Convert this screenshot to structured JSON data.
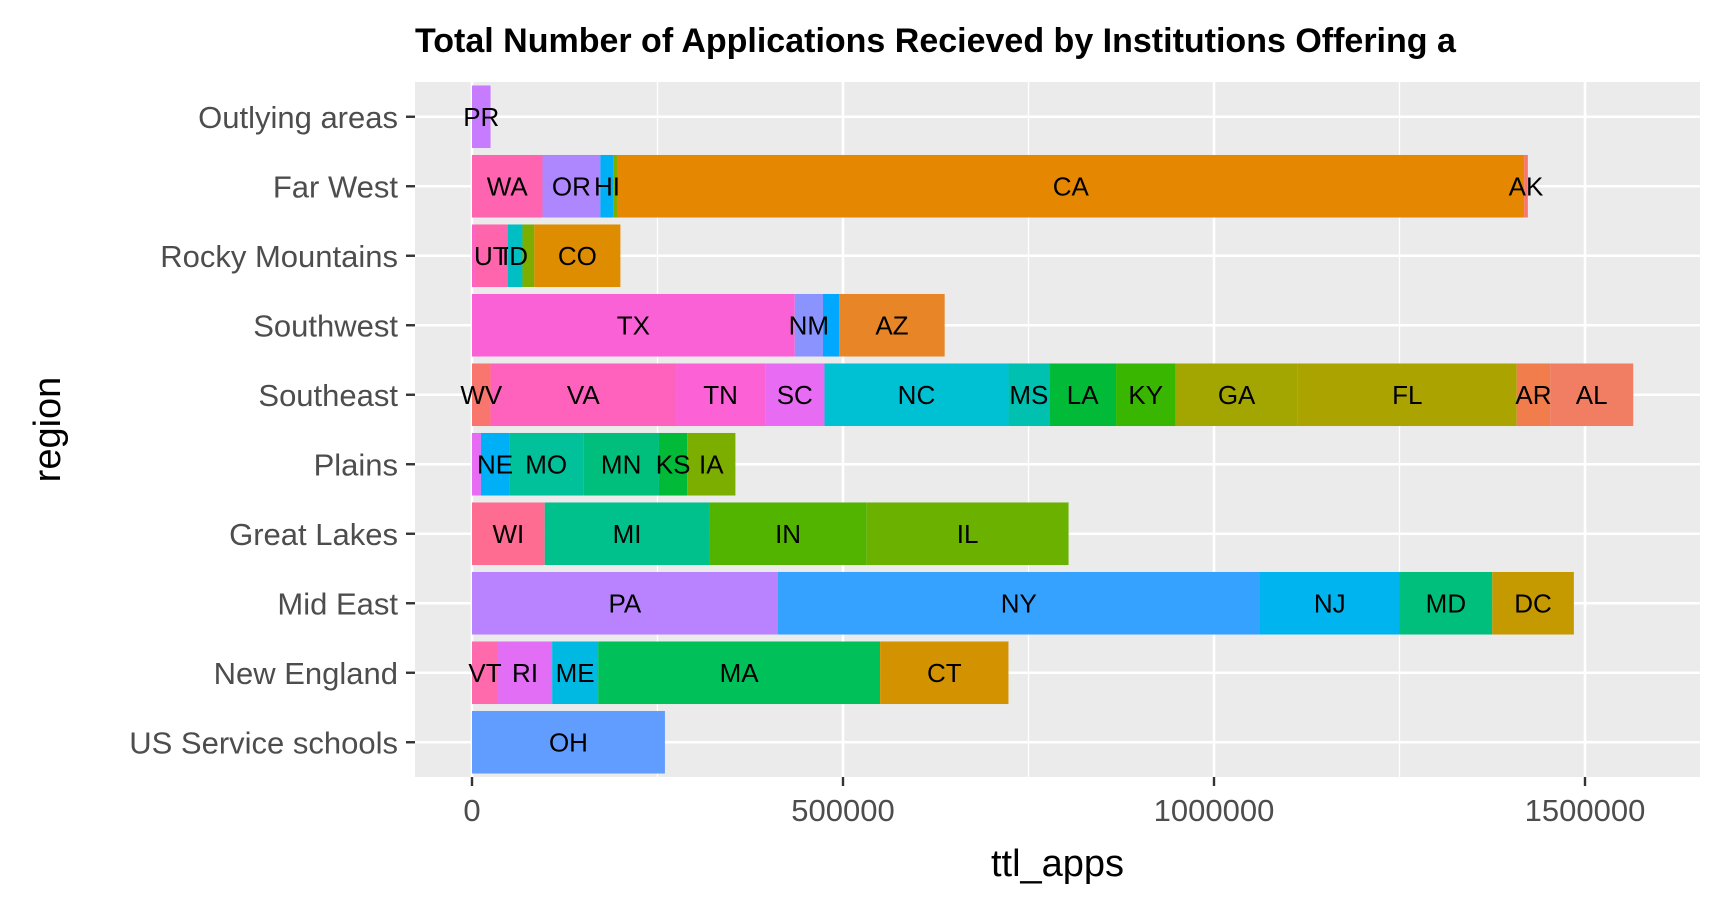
{
  "chart_data": {
    "type": "bar",
    "orientation": "horizontal",
    "stacked": true,
    "title": "Total Number of Applications Recieved by Institutions Offering a",
    "xlabel": "ttl_apps",
    "ylabel": "region",
    "xlim": [
      -75000,
      1615000
    ],
    "xticks": [
      0,
      500000,
      1000000,
      1500000
    ],
    "xtick_labels": [
      "0",
      "500000",
      "1000000",
      "1500000"
    ],
    "grid": true,
    "legend": "none",
    "categories": [
      "Outlying areas",
      "Far West",
      "Rocky Mountains",
      "Southwest",
      "Southeast",
      "Plains",
      "Great Lakes",
      "Mid East",
      "New England",
      "US Service schools"
    ],
    "bars": [
      {
        "region": "Outlying areas",
        "segments": [
          {
            "label": "PR",
            "value": 25000,
            "color": "#C77CFF"
          }
        ]
      },
      {
        "region": "Far West",
        "segments": [
          {
            "label": "WA",
            "value": 95000,
            "color": "#FF64B0"
          },
          {
            "label": "OR",
            "value": 78000,
            "color": "#AE87FF"
          },
          {
            "label": "HI",
            "value": 18000,
            "color": "#00B0F6"
          },
          {
            "label": "",
            "value": 5000,
            "color": "#7CAE00"
          },
          {
            "label": "CA",
            "value": 1222000,
            "color": "#E58700"
          },
          {
            "label": "AK",
            "value": 5000,
            "color": "#F8766D"
          }
        ]
      },
      {
        "region": "Rocky Mountains",
        "segments": [
          {
            "label": "",
            "value": 4000,
            "color": "#FF61C3"
          },
          {
            "label": "UT",
            "value": 44000,
            "color": "#FF65AC"
          },
          {
            "label": "ID",
            "value": 20000,
            "color": "#00BFC4"
          },
          {
            "label": "",
            "value": 16000,
            "color": "#7CAE00"
          },
          {
            "label": "CO",
            "value": 116000,
            "color": "#DE8C00"
          }
        ]
      },
      {
        "region": "Southwest",
        "segments": [
          {
            "label": "TX",
            "value": 435000,
            "color": "#FB61D7"
          },
          {
            "label": "NM",
            "value": 38000,
            "color": "#8B93FF"
          },
          {
            "label": "",
            "value": 22000,
            "color": "#00A9FF"
          },
          {
            "label": "AZ",
            "value": 142000,
            "color": "#E88526"
          }
        ]
      },
      {
        "region": "Southeast",
        "segments": [
          {
            "label": "WV",
            "value": 25000,
            "color": "#F8766D"
          },
          {
            "label": "VA",
            "value": 250000,
            "color": "#FF62BC"
          },
          {
            "label": "TN",
            "value": 120000,
            "color": "#FC61D5"
          },
          {
            "label": "SC",
            "value": 80000,
            "color": "#E76BF3"
          },
          {
            "label": "NC",
            "value": 248000,
            "color": "#00C1D4"
          },
          {
            "label": "MS",
            "value": 55000,
            "color": "#00C0AF"
          },
          {
            "label": "LA",
            "value": 90000,
            "color": "#00BA38"
          },
          {
            "label": "KY",
            "value": 80000,
            "color": "#39B600"
          },
          {
            "label": "GA",
            "value": 165000,
            "color": "#A3A500"
          },
          {
            "label": "FL",
            "value": 295000,
            "color": "#ABA300"
          },
          {
            "label": "AR",
            "value": 45000,
            "color": "#F07D4B"
          },
          {
            "label": "AL",
            "value": 112000,
            "color": "#F17E63"
          }
        ]
      },
      {
        "region": "Plains",
        "segments": [
          {
            "label": "",
            "value": 12000,
            "color": "#E76BF3"
          },
          {
            "label": "NE",
            "value": 38000,
            "color": "#00B0F6"
          },
          {
            "label": "MO",
            "value": 100000,
            "color": "#00C19A"
          },
          {
            "label": "MN",
            "value": 102000,
            "color": "#00BF7D"
          },
          {
            "label": "KS",
            "value": 38000,
            "color": "#00BA38"
          },
          {
            "label": "IA",
            "value": 65000,
            "color": "#7CAE00"
          }
        ]
      },
      {
        "region": "Great Lakes",
        "segments": [
          {
            "label": "WI",
            "value": 98000,
            "color": "#FF6C91"
          },
          {
            "label": "MI",
            "value": 222000,
            "color": "#00C08B"
          },
          {
            "label": "IN",
            "value": 212000,
            "color": "#53B400"
          },
          {
            "label": "IL",
            "value": 272000,
            "color": "#6BB100"
          }
        ]
      },
      {
        "region": "Mid East",
        "segments": [
          {
            "label": "PA",
            "value": 412000,
            "color": "#B983FF"
          },
          {
            "label": "NY",
            "value": 650000,
            "color": "#35A2FF"
          },
          {
            "label": "NJ",
            "value": 188000,
            "color": "#00B4EF"
          },
          {
            "label": "MD",
            "value": 125000,
            "color": "#00BF7D"
          },
          {
            "label": "DC",
            "value": 110000,
            "color": "#C49A00"
          }
        ]
      },
      {
        "region": "New England",
        "segments": [
          {
            "label": "VT",
            "value": 35000,
            "color": "#FF6AAD"
          },
          {
            "label": "RI",
            "value": 73000,
            "color": "#E36EF6"
          },
          {
            "label": "ME",
            "value": 62000,
            "color": "#00B9E3"
          },
          {
            "label": "MA",
            "value": 380000,
            "color": "#00C05A"
          },
          {
            "label": "CT",
            "value": 173000,
            "color": "#D39200"
          }
        ]
      },
      {
        "region": "US Service schools",
        "segments": [
          {
            "label": "OH",
            "value": 260000,
            "color": "#619CFF"
          }
        ]
      }
    ]
  }
}
